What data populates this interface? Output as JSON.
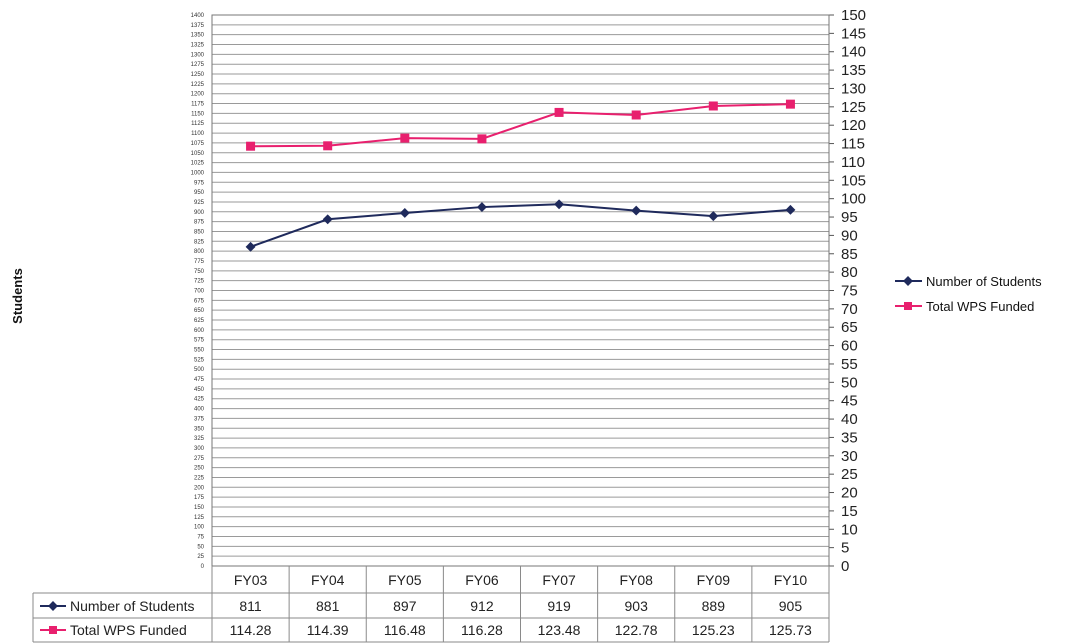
{
  "chart_data": {
    "type": "line",
    "title": "",
    "ylabel": "Students",
    "categories": [
      "FY03",
      "FY04",
      "FY05",
      "FY06",
      "FY07",
      "FY08",
      "FY09",
      "FY10"
    ],
    "y_left": {
      "min": 0,
      "max": 1400,
      "step": 25
    },
    "y_right": {
      "min": 0,
      "max": 150,
      "step": 5
    },
    "legend_position": "right",
    "grid": true,
    "series": [
      {
        "name": "Number of Students",
        "axis": "left",
        "marker": "diamond",
        "color": "#1f2a5c",
        "values": [
          811,
          881,
          897,
          912,
          919,
          903,
          889,
          905
        ],
        "table_labels": [
          "811",
          "881",
          "897",
          "912",
          "919",
          "903",
          "889",
          "905"
        ]
      },
      {
        "name": "Total WPS Funded",
        "axis": "right",
        "marker": "square",
        "color": "#e8206e",
        "values": [
          114.28,
          114.39,
          116.48,
          116.28,
          123.48,
          122.78,
          125.23,
          125.73
        ],
        "table_labels": [
          "114.28",
          "114.39",
          "116.48",
          "116.28",
          "123.48",
          "122.78",
          "125.23",
          "125.73"
        ]
      }
    ]
  }
}
